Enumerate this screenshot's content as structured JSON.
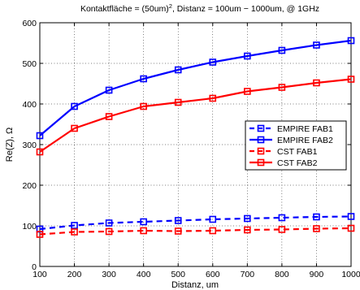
{
  "chart_data": {
    "type": "line",
    "title_main": "Kontaktfläche = (50um)",
    "title_sup": "2",
    "title_rest": ", Distanz = 100um − 1000um, @ 1GHz",
    "xlabel": "Distanz, um",
    "ylabel": "Re(Z), Ω",
    "xlim": [
      100,
      1000
    ],
    "ylim": [
      0,
      600
    ],
    "x_ticks": [
      100,
      200,
      300,
      400,
      500,
      600,
      700,
      800,
      900,
      1000
    ],
    "y_ticks": [
      0,
      100,
      200,
      300,
      400,
      500,
      600
    ],
    "grid": true,
    "legend_position": "right",
    "x": [
      100,
      200,
      300,
      400,
      500,
      600,
      700,
      800,
      900,
      1000
    ],
    "series": [
      {
        "name": "EMPIRE FAB1",
        "color": "#0000ff",
        "dash": true,
        "values": [
          92,
          101,
          107,
          110,
          113,
          116,
          118,
          120,
          122,
          123
        ]
      },
      {
        "name": "EMPIRE FAB2",
        "color": "#0000ff",
        "dash": false,
        "values": [
          322,
          394,
          434,
          462,
          484,
          503,
          518,
          532,
          545,
          556
        ]
      },
      {
        "name": "CST FAB1",
        "color": "#ff0000",
        "dash": true,
        "values": [
          79,
          85,
          86,
          88,
          87,
          88,
          90,
          91,
          93,
          94
        ]
      },
      {
        "name": "CST FAB2",
        "color": "#ff0000",
        "dash": false,
        "values": [
          282,
          340,
          369,
          394,
          404,
          414,
          431,
          441,
          452,
          461
        ]
      }
    ]
  }
}
